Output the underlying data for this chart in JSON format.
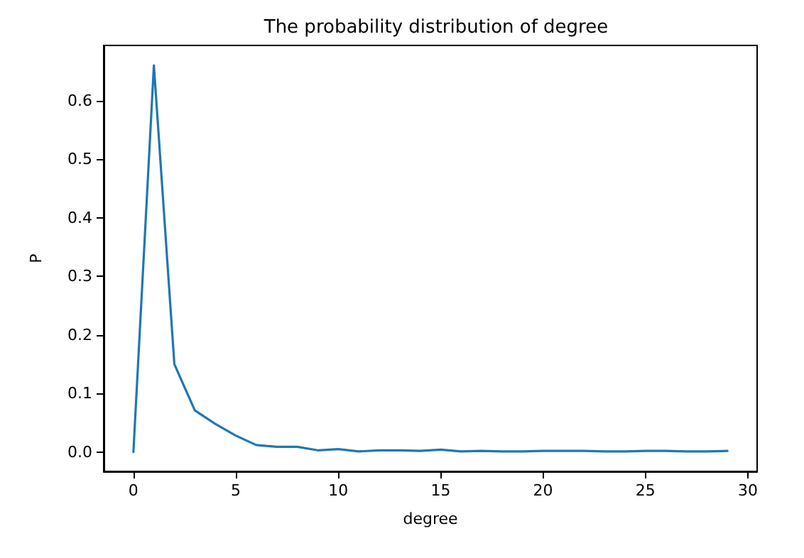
{
  "chart_data": {
    "type": "line",
    "title": "The probability distribution of degree",
    "xlabel": "degree",
    "ylabel": "P",
    "x": [
      0,
      1,
      2,
      3,
      4,
      5,
      6,
      7,
      8,
      9,
      10,
      11,
      12,
      13,
      14,
      15,
      16,
      17,
      18,
      19,
      20,
      21,
      22,
      23,
      24,
      25,
      26,
      27,
      28,
      29
    ],
    "series": [
      {
        "color": "#1f77b4",
        "values": [
          0,
          0.66,
          0.15,
          0.071,
          0.048,
          0.028,
          0.012,
          0.009,
          0.009,
          0.003,
          0.005,
          0.001,
          0.003,
          0.003,
          0.002,
          0.004,
          0.001,
          0.002,
          0.001,
          0.001,
          0.002,
          0.002,
          0.002,
          0.001,
          0.001,
          0.002,
          0.002,
          0.001,
          0.001,
          0.002
        ]
      }
    ],
    "xlim": [
      -1.45,
      30.45
    ],
    "xticks": [
      0,
      5,
      10,
      15,
      20,
      25,
      30
    ],
    "ylim": [
      -0.033,
      0.694
    ],
    "yticks": [
      {
        "value": 0,
        "label": "0.0"
      },
      0.1,
      0.2,
      0.3,
      0.4,
      0.5,
      0.6
    ],
    "grid": false,
    "marker": "none",
    "line_style": "solid"
  }
}
